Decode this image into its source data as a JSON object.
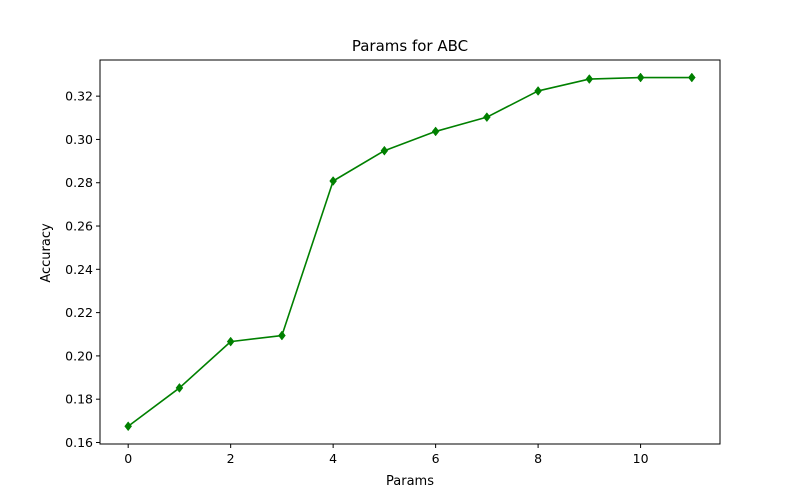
{
  "chart_data": {
    "type": "line",
    "title": "Params for ABC",
    "xlabel": "Params",
    "ylabel": "Accuracy",
    "x": [
      0,
      1,
      2,
      3,
      4,
      5,
      6,
      7,
      8,
      9,
      10,
      11
    ],
    "series": [
      {
        "values": [
          0.1675,
          0.1852,
          0.2066,
          0.2094,
          0.2808,
          0.2948,
          0.3037,
          0.3103,
          0.3224,
          0.3279,
          0.3286,
          0.3286
        ],
        "color": "#008000",
        "marker": "diamond"
      }
    ],
    "xlim": [
      -0.55,
      11.55
    ],
    "ylim": [
      0.1593,
      0.3367
    ],
    "xticks": [
      0,
      2,
      4,
      6,
      8,
      10
    ],
    "yticks": [
      0.16,
      0.18,
      0.2,
      0.22,
      0.24,
      0.26,
      0.28,
      0.3,
      0.32
    ],
    "xtick_labels": [
      "0",
      "2",
      "4",
      "6",
      "8",
      "10"
    ],
    "ytick_labels": [
      "0.16",
      "0.18",
      "0.20",
      "0.22",
      "0.24",
      "0.26",
      "0.28",
      "0.30",
      "0.32"
    ],
    "grid": false,
    "legend": false
  }
}
